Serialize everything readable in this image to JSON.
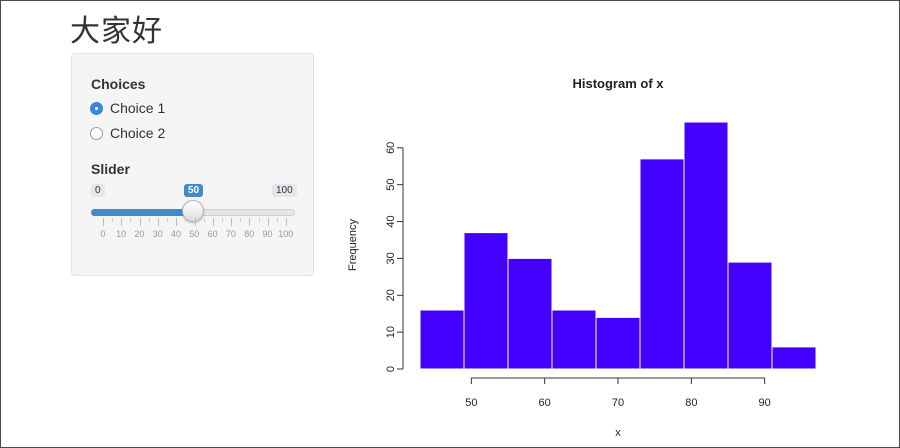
{
  "page": {
    "title": "大家好"
  },
  "sidebar": {
    "choices_label": "Choices",
    "options": [
      {
        "label": "Choice 1",
        "checked": true
      },
      {
        "label": "Choice 2",
        "checked": false
      }
    ],
    "slider_label": "Slider",
    "slider": {
      "min": 0,
      "max": 100,
      "value": 50,
      "min_label": "0",
      "max_label": "100",
      "value_label": "50",
      "ticks": [
        "0",
        "10",
        "20",
        "30",
        "40",
        "50",
        "60",
        "70",
        "80",
        "90",
        "100"
      ]
    }
  },
  "colors": {
    "accent": "#428bca",
    "bar_fill": "#4400ff",
    "bar_border": "#ffffff"
  },
  "chart_data": {
    "type": "bar",
    "title": "Histogram of x",
    "xlabel": "x",
    "ylabel": "Frequency",
    "bin_edges": [
      43,
      49,
      55,
      61,
      67,
      73,
      79,
      85,
      91,
      97
    ],
    "values": [
      16,
      37,
      30,
      16,
      14,
      57,
      67,
      29,
      6
    ],
    "xticks": [
      50,
      60,
      70,
      80,
      90
    ],
    "yticks": [
      0,
      10,
      20,
      30,
      40,
      50,
      60
    ],
    "xlim": [
      43,
      97
    ],
    "ylim": [
      0,
      67
    ]
  }
}
